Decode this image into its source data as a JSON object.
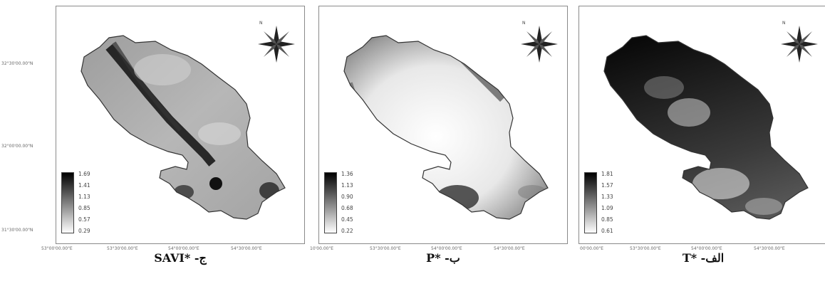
{
  "panels": [
    {
      "id": "savi",
      "caption": "ج- *SAVI",
      "legend_values": [
        "1.69",
        "1.41",
        "1.13",
        "0.85",
        "0.57",
        "0.29"
      ],
      "lat_ticks": [
        "32°30'00.00\"N",
        "32°00'00.00\"N",
        "31°30'00.00\"N"
      ],
      "lon_ticks": [
        "53°00'00.00\"E",
        "53°30'00.00\"E",
        "54°00'00.00\"E",
        "54°30'00.00\"E"
      ]
    },
    {
      "id": "p",
      "caption": "ب- *P",
      "legend_values": [
        "1.36",
        "1.13",
        "0.90",
        "0.68",
        "0.45",
        "0.22"
      ],
      "lon_ticks": [
        "10'00.00\"E",
        "53°30'00.00\"E",
        "54°00'00.00\"E",
        "54°30'00.00\"E"
      ]
    },
    {
      "id": "t",
      "caption": "الف- *T",
      "legend_values": [
        "1.81",
        "1.57",
        "1.33",
        "1.09",
        "0.85",
        "0.61"
      ],
      "lon_ticks": [
        "00'00.00\"E",
        "53°30'00.00\"E",
        "54°00'00.00\"E",
        "54°30'00.00\"E"
      ]
    }
  ],
  "north_label": "N"
}
